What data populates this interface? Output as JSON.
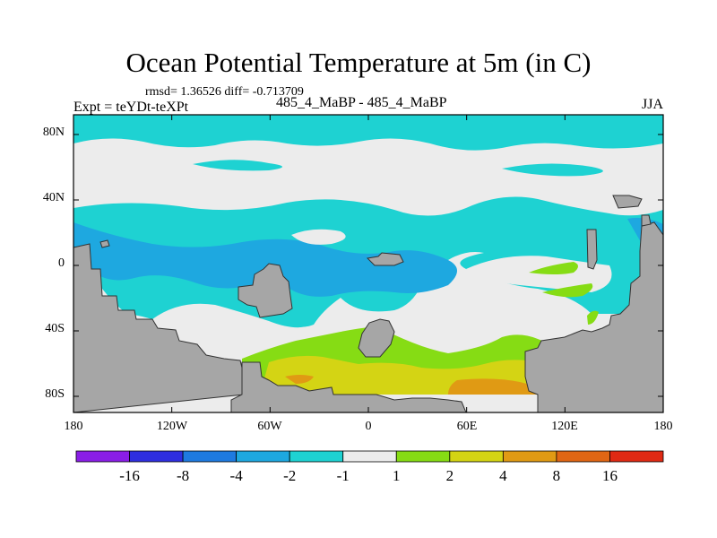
{
  "title": "Ocean Potential Temperature at 5m (in C)",
  "stats_line": "rmsd= 1.36526 diff= -0.713709",
  "expt_label": "Expt = teYDt-teXPt",
  "cases_label": "485_4_MaBP - 485_4_MaBP",
  "season_label": "JJA",
  "y_axis_labels": [
    "80N",
    "40N",
    "0",
    "40S",
    "80S"
  ],
  "x_axis_labels": [
    "180",
    "120W",
    "60W",
    "0",
    "60E",
    "120E",
    "180"
  ],
  "colorbar": {
    "tick_labels": [
      "-16",
      "-8",
      "-4",
      "-2",
      "-1",
      "1",
      "2",
      "4",
      "8",
      "16"
    ],
    "colors": [
      "#8a1ee6",
      "#2e2ee0",
      "#1e7ae0",
      "#1ea8e0",
      "#1ed2d2",
      "#ececec",
      "#86dc14",
      "#d4d414",
      "#e09a14",
      "#e06614",
      "#e02a14"
    ]
  },
  "colors": {
    "land": "#a6a6a6",
    "ocean_neutral": "#ececec",
    "cool_light": "#1ed2d2",
    "cool_medium": "#1ea8e0",
    "warm_green": "#86dc14",
    "warm_yellow": "#d4d414",
    "warm_orange": "#e09a14"
  }
}
